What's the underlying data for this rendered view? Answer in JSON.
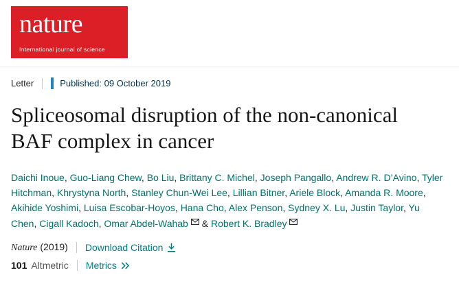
{
  "colors": {
    "brand_red": "#dc1e26",
    "published_bar_blue": "#1f83c4",
    "published_text": "#01324b",
    "author_link": "#00706a",
    "action_link": "#017c86"
  },
  "header": {
    "logo_text": "nature",
    "logo_tagline": "International journal of science"
  },
  "meta": {
    "article_type": "Letter",
    "published_label": "Published:",
    "published_date": "09 October 2019"
  },
  "title": "Spliceosomal disruption of the non-canonical BAF complex in cancer",
  "authors": {
    "separator": ", ",
    "ampersand": " & ",
    "list": [
      {
        "name": "Daichi Inoue"
      },
      {
        "name": "Guo-Liang Chew"
      },
      {
        "name": "Bo Liu"
      },
      {
        "name": "Brittany C. Michel"
      },
      {
        "name": "Joseph Pangallo"
      },
      {
        "name": "Andrew R. D’Avino"
      },
      {
        "name": "Tyler Hitchman"
      },
      {
        "name": "Khrystyna North"
      },
      {
        "name": "Stanley Chun-Wei Lee"
      },
      {
        "name": "Lillian Bitner"
      },
      {
        "name": "Ariele Block"
      },
      {
        "name": "Amanda R. Moore"
      },
      {
        "name": "Akihide Yoshimi"
      },
      {
        "name": "Luisa Escobar-Hoyos"
      },
      {
        "name": "Hana Cho"
      },
      {
        "name": "Alex Penson"
      },
      {
        "name": "Sydney X. Lu"
      },
      {
        "name": "Justin Taylor"
      },
      {
        "name": "Yu Chen"
      },
      {
        "name": "Cigall Kadoch"
      },
      {
        "name": "Omar Abdel-Wahab",
        "email": true
      },
      {
        "name": "Robert K. Bradley",
        "email": true
      }
    ]
  },
  "citation": {
    "journal": "Nature",
    "year": "(2019)",
    "download_label": "Download Citation"
  },
  "metrics": {
    "altmetric_score": "101",
    "altmetric_label": "Altmetric",
    "metrics_label": "Metrics"
  },
  "icons": {
    "email_icon": "envelope",
    "download_icon": "download-arrow",
    "metrics_icon": "double-chevron-right"
  }
}
